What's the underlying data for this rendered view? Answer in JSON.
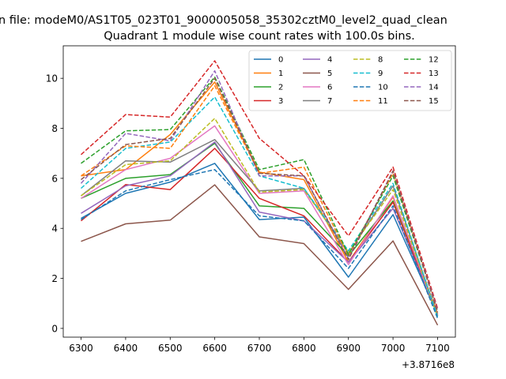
{
  "figure": {
    "suptitle": "n file: modeM0/AS1T05_023T01_9000005058_35302cztM0_level2_quad_clean",
    "title": "Quadrant 1 module wise count rates with 100.0s bins."
  },
  "chart_data": {
    "type": "line",
    "title": "Quadrant 1 module wise count rates with 100.0s bins.",
    "xlabel": "",
    "ylabel": "",
    "x_offset_label": "+3.8716e8",
    "x": [
      6300,
      6400,
      6500,
      6600,
      6700,
      6800,
      6900,
      7000,
      7100
    ],
    "xticks": [
      "6300",
      "6400",
      "6500",
      "6600",
      "6700",
      "6800",
      "6900",
      "7000",
      "7100"
    ],
    "yticks": [
      "0",
      "2",
      "4",
      "6",
      "8",
      "10"
    ],
    "xlim": [
      6260,
      7140
    ],
    "ylim": [
      -0.35,
      11.3
    ],
    "grid": false,
    "legend_position": "top-right",
    "series": [
      {
        "name": "0",
        "color": "#1f77b4",
        "dash": "solid",
        "values": [
          4.4,
          5.4,
          5.85,
          6.6,
          4.35,
          4.45,
          2.05,
          4.55,
          0.55
        ]
      },
      {
        "name": "1",
        "color": "#ff7f0e",
        "dash": "solid",
        "values": [
          6.1,
          6.35,
          7.75,
          9.85,
          6.25,
          5.95,
          2.65,
          5.25,
          0.6
        ]
      },
      {
        "name": "2",
        "color": "#2ca02c",
        "dash": "solid",
        "values": [
          5.2,
          6.0,
          6.15,
          7.4,
          4.9,
          4.8,
          2.9,
          5.1,
          0.5
        ]
      },
      {
        "name": "3",
        "color": "#d62728",
        "dash": "solid",
        "values": [
          4.3,
          5.75,
          5.55,
          7.2,
          5.2,
          4.5,
          2.65,
          5.05,
          0.5
        ]
      },
      {
        "name": "4",
        "color": "#9467bd",
        "dash": "solid",
        "values": [
          4.6,
          5.7,
          6.1,
          7.45,
          4.65,
          4.3,
          2.65,
          4.8,
          0.55
        ]
      },
      {
        "name": "5",
        "color": "#8c564b",
        "dash": "solid",
        "values": [
          3.48,
          4.18,
          4.33,
          5.74,
          3.66,
          3.39,
          1.56,
          3.5,
          0.13
        ]
      },
      {
        "name": "6",
        "color": "#e377c2",
        "dash": "solid",
        "values": [
          5.2,
          6.35,
          6.8,
          8.1,
          5.4,
          5.5,
          2.55,
          5.3,
          0.5
        ]
      },
      {
        "name": "7",
        "color": "#7f7f7f",
        "dash": "solid",
        "values": [
          5.3,
          6.7,
          6.65,
          7.55,
          5.5,
          5.6,
          3.0,
          5.7,
          0.5
        ]
      },
      {
        "name": "8",
        "color": "#bcbd22",
        "dash": "dashed",
        "values": [
          5.3,
          6.55,
          6.7,
          8.4,
          5.45,
          5.55,
          3.05,
          5.55,
          0.45
        ]
      },
      {
        "name": "9",
        "color": "#17becf",
        "dash": "dashed",
        "values": [
          5.6,
          7.2,
          7.45,
          9.25,
          6.1,
          5.6,
          3.1,
          5.8,
          0.45
        ]
      },
      {
        "name": "10",
        "color": "#1f77b4",
        "dash": "dashed",
        "values": [
          4.35,
          5.5,
          5.95,
          6.35,
          4.5,
          4.3,
          2.4,
          4.9,
          0.4
        ]
      },
      {
        "name": "11",
        "color": "#ff7f0e",
        "dash": "dashed",
        "values": [
          6.1,
          7.3,
          7.2,
          9.7,
          6.2,
          6.45,
          2.9,
          6.2,
          0.75
        ]
      },
      {
        "name": "12",
        "color": "#2ca02c",
        "dash": "dashed",
        "values": [
          6.6,
          7.9,
          7.95,
          10.05,
          6.35,
          6.75,
          2.95,
          6.1,
          0.7
        ]
      },
      {
        "name": "13",
        "color": "#d62728",
        "dash": "dashed",
        "values": [
          6.95,
          8.55,
          8.45,
          10.7,
          7.6,
          6.1,
          3.7,
          6.45,
          0.8
        ]
      },
      {
        "name": "14",
        "color": "#9467bd",
        "dash": "dashed",
        "values": [
          5.8,
          7.8,
          7.5,
          10.3,
          6.1,
          6.1,
          2.8,
          6.3,
          0.7
        ]
      },
      {
        "name": "15",
        "color": "#8c564b",
        "dash": "dashed",
        "values": [
          5.95,
          7.35,
          7.6,
          10.0,
          6.2,
          6.1,
          2.75,
          6.3,
          0.65
        ]
      }
    ]
  }
}
